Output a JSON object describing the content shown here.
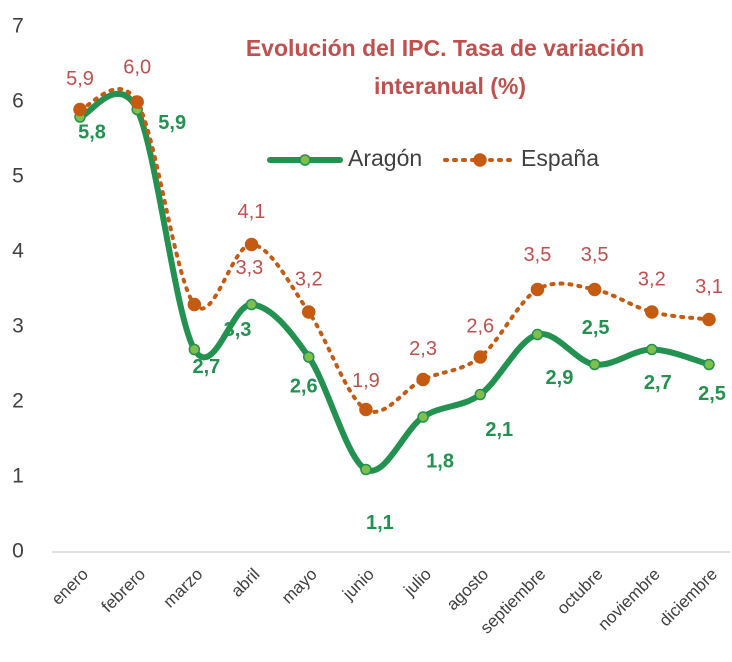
{
  "chart_data": {
    "type": "line",
    "title": [
      "Evolución del IPC. Tasa de variación",
      "interanual (%)"
    ],
    "categories": [
      "enero",
      "febrero",
      "marzo",
      "abril",
      "mayo",
      "junio",
      "julio",
      "agosto",
      "septiembre",
      "octubre",
      "noviembre",
      "diciembre"
    ],
    "series": [
      {
        "name": "Aragón",
        "color": "#23914f",
        "values": [
          5.8,
          5.9,
          2.7,
          3.3,
          2.6,
          1.1,
          1.8,
          2.1,
          2.9,
          2.5,
          2.7,
          2.5
        ],
        "value_labels": [
          "5,8",
          "5,9",
          "2,7",
          "3,3",
          "2,6",
          "1,1",
          "1,8",
          "2,1",
          "2,9",
          "2,5",
          "2,7",
          "2,5"
        ]
      },
      {
        "name": "España",
        "color": "#c55a11",
        "values": [
          5.9,
          6.0,
          3.3,
          4.1,
          3.2,
          1.9,
          2.3,
          2.6,
          3.5,
          3.5,
          3.2,
          3.1
        ],
        "value_labels": [
          "5,9",
          "6,0",
          "3,3",
          "4,1",
          "3,2",
          "1,9",
          "2,3",
          "2,6",
          "3,5",
          "3,5",
          "3,2",
          "3,1"
        ]
      }
    ],
    "ylim": [
      0,
      7
    ],
    "yticks": [
      0,
      1,
      2,
      3,
      4,
      5,
      6,
      7
    ]
  }
}
